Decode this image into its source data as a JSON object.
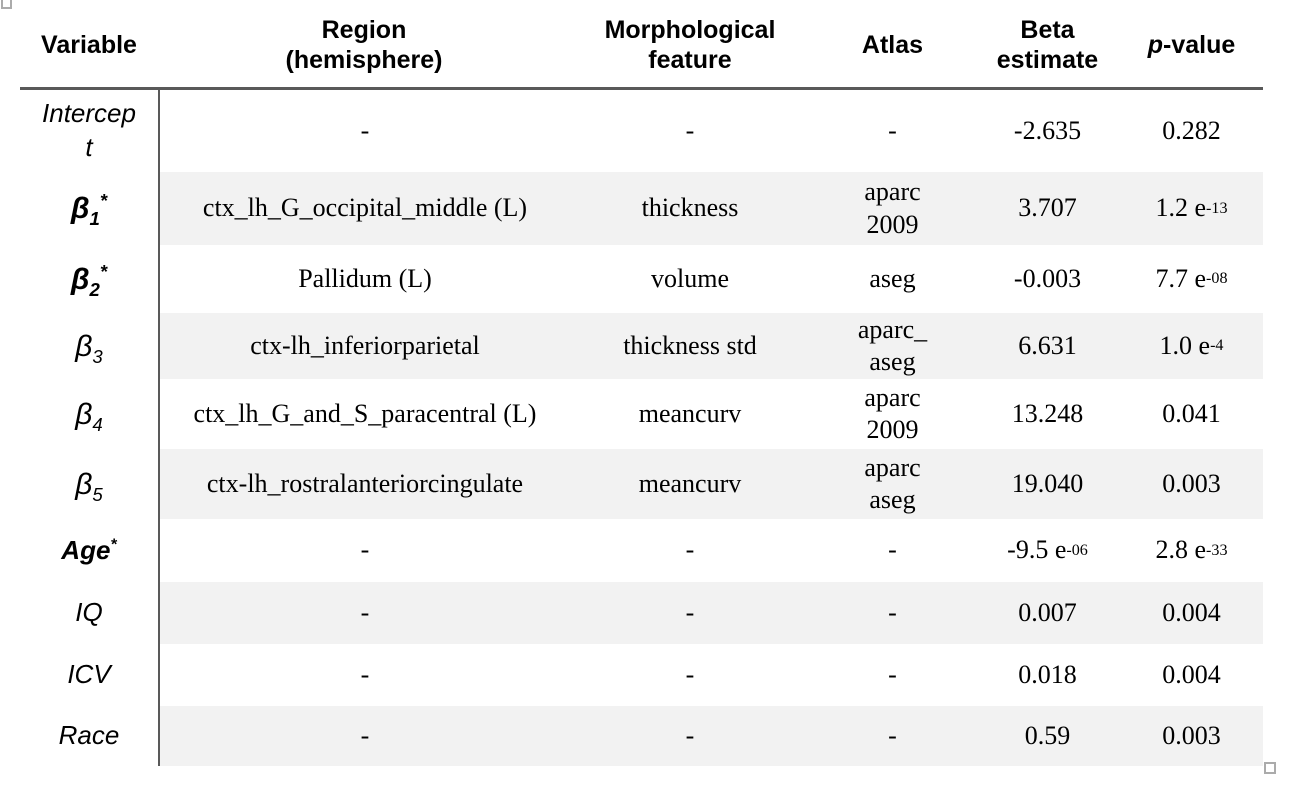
{
  "table": {
    "columns": [
      {
        "key": "variable",
        "label": "Variable"
      },
      {
        "key": "region",
        "label": "Region\n(hemisphere)"
      },
      {
        "key": "feature",
        "label": "Morphological\nfeature"
      },
      {
        "key": "atlas",
        "label": "Atlas"
      },
      {
        "key": "beta",
        "label": "Beta\nestimate"
      },
      {
        "key": "p_value",
        "label": "//p//-value"
      }
    ],
    "rows": [
      {
        "variable": "Intercept",
        "significant": false,
        "beta_symbol": false,
        "region": "-",
        "feature": "-",
        "atlas": "-",
        "beta": "-2.635",
        "p_value": "0.282"
      },
      {
        "variable": "β~1~^*^",
        "significant": true,
        "beta_symbol": true,
        "region": "ctx_lh_G_occipital_middle (L)",
        "feature": "thickness",
        "atlas": "aparc\n2009",
        "beta": "3.707",
        "p_value": "1.2 e^-13^"
      },
      {
        "variable": "β~2~^*^",
        "significant": true,
        "beta_symbol": true,
        "region": "Pallidum (L)",
        "feature": "volume",
        "atlas": "aseg",
        "beta": "-0.003",
        "p_value": "7.7 e^-08^"
      },
      {
        "variable": "β~3~",
        "significant": false,
        "beta_symbol": true,
        "region": "ctx-lh_inferiorparietal",
        "feature": "thickness std",
        "atlas": "aparc_\naseg",
        "beta": "6.631",
        "p_value": "1.0 e^-4^"
      },
      {
        "variable": "β~4~",
        "significant": false,
        "beta_symbol": true,
        "region": "ctx_lh_G_and_S_paracentral (L)",
        "feature": "meancurv",
        "atlas": "aparc\n2009",
        "beta": "13.248",
        "p_value": "0.041"
      },
      {
        "variable": "β~5~",
        "significant": false,
        "beta_symbol": true,
        "region": "ctx-lh_rostralanteriorcingulate",
        "feature": "meancurv",
        "atlas": "aparc\naseg",
        "beta": "19.040",
        "p_value": "0.003"
      },
      {
        "variable": "Age^*^",
        "significant": true,
        "beta_symbol": false,
        "region": "-",
        "feature": "-",
        "atlas": "-",
        "beta": "-9.5 e^-06^",
        "p_value": "2.8 e^-33^"
      },
      {
        "variable": "IQ",
        "significant": false,
        "beta_symbol": false,
        "region": "-",
        "feature": "-",
        "atlas": "-",
        "beta": "0.007",
        "p_value": "0.004"
      },
      {
        "variable": "ICV",
        "significant": false,
        "beta_symbol": false,
        "region": "-",
        "feature": "-",
        "atlas": "-",
        "beta": "0.018",
        "p_value": "0.004"
      },
      {
        "variable": "Race",
        "significant": false,
        "beta_symbol": false,
        "region": "-",
        "feature": "-",
        "atlas": "-",
        "beta": "0.59",
        "p_value": "0.003"
      }
    ],
    "stripe_color": "#f2f2f2",
    "rule_color": "#595959"
  }
}
